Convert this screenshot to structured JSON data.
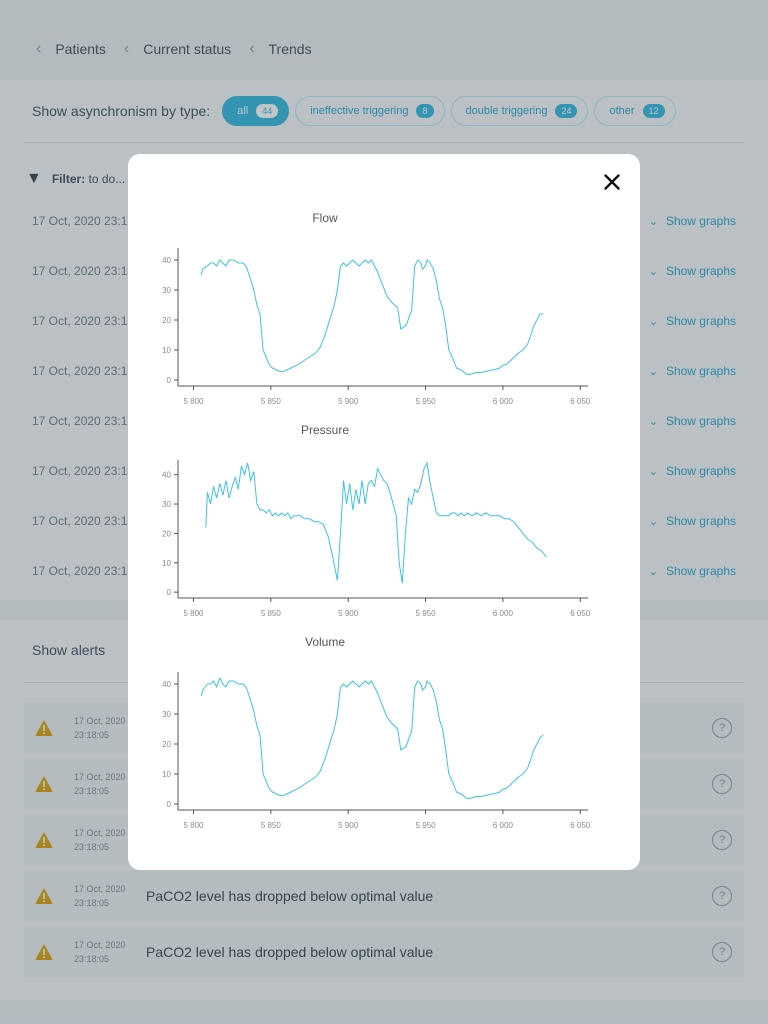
{
  "breadcrumb": [
    "Patients",
    "Current status",
    "Trends"
  ],
  "asynchronism": {
    "label": "Show asynchronism by type:",
    "chips": [
      {
        "label": "all",
        "count": "44",
        "active": true
      },
      {
        "label": "ineffective triggering",
        "count": "8"
      },
      {
        "label": "double triggering",
        "count": "24"
      },
      {
        "label": "other",
        "count": "12"
      }
    ]
  },
  "filter": {
    "label": "Filter:",
    "value": "to do..."
  },
  "asynchronism_rows": [
    {
      "date": "17 Oct, 2020 23:1",
      "action": "Show graphs"
    },
    {
      "date": "17 Oct, 2020 23:1",
      "action": "Show graphs"
    },
    {
      "date": "17 Oct, 2020 23:1",
      "action": "Show graphs"
    },
    {
      "date": "17 Oct, 2020 23:1",
      "action": "Show graphs"
    },
    {
      "date": "17 Oct, 2020 23:1",
      "action": "Show graphs"
    },
    {
      "date": "17 Oct, 2020 23:1",
      "action": "Show graphs"
    },
    {
      "date": "17 Oct, 2020 23:1",
      "action": "Show graphs"
    },
    {
      "date": "17 Oct, 2020 23:1",
      "action": "Show graphs"
    }
  ],
  "alerts": {
    "label": "Show alerts",
    "items": [
      {
        "date": "17 Oct, 2020",
        "time": "23:18:05",
        "text": ""
      },
      {
        "date": "17 Oct, 2020",
        "time": "23:18:05",
        "text": ""
      },
      {
        "date": "17 Oct, 2020",
        "time": "23:18:05",
        "text": ""
      },
      {
        "date": "17 Oct, 2020",
        "time": "23:18:05",
        "text": "PaCO2 level has dropped below optimal value"
      },
      {
        "date": "17 Oct, 2020",
        "time": "23:18:05",
        "text": "PaCO2 level has dropped below optimal value"
      }
    ]
  },
  "modal": {
    "close_icon": "close-icon"
  },
  "colors": {
    "accent": "#2bb6e0",
    "line": "#3cc3e4",
    "warning": "#d9a100"
  },
  "chart_data": [
    {
      "type": "line",
      "title": "Flow",
      "xlabel": "",
      "ylabel": "",
      "xlim": [
        5790,
        6055
      ],
      "ylim": [
        -2,
        44
      ],
      "xticks": [
        5800,
        5850,
        5900,
        5950,
        6000,
        6050
      ],
      "xtick_labels": [
        "5 800",
        "5 850",
        "5 900",
        "5 950",
        "6 000",
        "6 050"
      ],
      "yticks": [
        0,
        10,
        20,
        30,
        40
      ],
      "grid": false,
      "x": [
        5805,
        5806,
        5809,
        5811,
        5813,
        5815,
        5817,
        5819,
        5821,
        5823,
        5826,
        5829,
        5832,
        5834,
        5836,
        5839,
        5841,
        5843,
        5845,
        5849,
        5851,
        5853,
        5855,
        5857,
        5859,
        5863,
        5867,
        5870,
        5873,
        5876,
        5879,
        5882,
        5885,
        5888,
        5891,
        5893,
        5895,
        5897,
        5899,
        5901,
        5903,
        5905,
        5907,
        5909,
        5911,
        5913,
        5915,
        5917,
        5919,
        5922,
        5925,
        5928,
        5930,
        5932,
        5934,
        5937,
        5938,
        5940,
        5941,
        5943,
        5945,
        5947,
        5948,
        5950,
        5951,
        5953,
        5955,
        5957,
        5959,
        5961,
        5963,
        5965,
        5967,
        5970,
        5972,
        5974,
        5976,
        5978,
        5981,
        5983,
        5986,
        5988,
        5990,
        5992,
        5995,
        5998,
        6000,
        6002,
        6004,
        6006,
        6008,
        6010,
        6013,
        6016,
        6018,
        6020,
        6022,
        6024,
        6026
      ],
      "y": [
        35,
        37,
        38,
        39,
        39,
        38,
        40,
        39,
        38,
        40,
        40,
        39,
        39,
        38,
        35,
        30,
        25,
        22,
        10,
        5,
        4,
        3.5,
        3,
        2.7,
        3,
        4,
        5,
        6,
        7,
        8,
        9,
        11,
        15,
        20,
        25,
        30,
        38,
        39,
        38,
        39,
        40,
        39,
        38,
        39,
        40,
        39,
        40,
        38,
        36,
        32,
        28,
        26,
        25,
        24,
        17,
        18,
        19,
        22,
        23,
        38,
        40,
        39,
        37,
        38,
        40,
        39,
        37,
        33,
        27,
        24,
        18,
        10,
        8,
        4,
        3.5,
        3,
        2,
        1.8,
        2.2,
        2.5,
        2.6,
        2.7,
        3,
        3.2,
        3.5,
        4,
        5,
        5.2,
        6,
        7,
        8,
        9,
        10,
        12,
        15,
        18,
        20,
        22,
        22
      ]
    },
    {
      "type": "line",
      "title": "Pressure",
      "xlabel": "",
      "ylabel": "",
      "xlim": [
        5790,
        6055
      ],
      "ylim": [
        -2,
        45
      ],
      "xticks": [
        5800,
        5850,
        5900,
        5950,
        6000,
        6050
      ],
      "xtick_labels": [
        "5 800",
        "5 850",
        "5 900",
        "5 950",
        "6 000",
        "6 050"
      ],
      "yticks": [
        0,
        10,
        20,
        30,
        40
      ],
      "grid": false,
      "x": [
        5808,
        5809,
        5811,
        5813,
        5815,
        5817,
        5819,
        5821,
        5823,
        5825,
        5827,
        5829,
        5831,
        5833,
        5835,
        5837,
        5839,
        5841,
        5843,
        5845,
        5847,
        5849,
        5851,
        5853,
        5855,
        5857,
        5859,
        5861,
        5863,
        5865,
        5867,
        5869,
        5872,
        5875,
        5878,
        5881,
        5884,
        5887,
        5890,
        5893,
        5895,
        5897,
        5899,
        5901,
        5903,
        5905,
        5907,
        5909,
        5911,
        5913,
        5915,
        5917,
        5919,
        5921,
        5923,
        5925,
        5927,
        5929,
        5931,
        5933,
        5935,
        5937,
        5939,
        5941,
        5943,
        5945,
        5947,
        5949,
        5951,
        5953,
        5955,
        5957,
        5959,
        5961,
        5963,
        5965,
        5967,
        5969,
        5971,
        5973,
        5975,
        5977,
        5980,
        5983,
        5986,
        5989,
        5992,
        5995,
        5998,
        6001,
        6004,
        6007,
        6010,
        6013,
        6016,
        6019,
        6022,
        6025,
        6028
      ],
      "y": [
        22,
        34,
        30,
        36,
        32,
        37,
        33,
        38,
        32,
        36,
        39,
        35,
        43,
        40,
        44,
        38,
        41,
        30,
        28,
        28,
        27,
        28,
        26,
        27,
        26,
        27,
        26,
        27,
        25,
        26,
        26,
        26,
        25,
        25,
        24,
        24,
        23,
        19,
        12,
        4,
        20,
        38,
        30,
        37,
        28,
        35,
        30,
        38,
        30,
        37,
        38,
        36,
        42,
        40,
        38,
        37,
        34,
        30,
        26,
        10,
        3,
        20,
        32,
        30,
        35,
        34,
        37,
        42,
        44,
        37,
        32,
        27,
        26,
        26,
        26,
        26,
        27,
        27,
        26,
        27,
        26,
        27,
        26,
        27,
        26,
        27,
        26,
        26,
        26,
        25,
        25,
        24,
        22,
        20,
        18,
        17,
        15,
        14,
        12
      ]
    },
    {
      "type": "line",
      "title": "Volume",
      "xlabel": "",
      "ylabel": "",
      "xlim": [
        5790,
        6055
      ],
      "ylim": [
        -2,
        44
      ],
      "xticks": [
        5800,
        5850,
        5900,
        5950,
        6000,
        6050
      ],
      "xtick_labels": [
        "5 800",
        "5 850",
        "5 900",
        "5 950",
        "6 000",
        "6 050"
      ],
      "yticks": [
        0,
        10,
        20,
        30,
        40
      ],
      "grid": false,
      "x": [
        5805,
        5806,
        5809,
        5811,
        5813,
        5815,
        5817,
        5819,
        5821,
        5823,
        5826,
        5829,
        5832,
        5834,
        5836,
        5839,
        5841,
        5843,
        5845,
        5849,
        5851,
        5853,
        5855,
        5857,
        5859,
        5863,
        5867,
        5870,
        5873,
        5876,
        5879,
        5882,
        5885,
        5888,
        5891,
        5893,
        5895,
        5897,
        5899,
        5901,
        5903,
        5905,
        5907,
        5909,
        5911,
        5913,
        5915,
        5917,
        5919,
        5922,
        5925,
        5928,
        5930,
        5932,
        5934,
        5937,
        5938,
        5940,
        5941,
        5943,
        5945,
        5947,
        5948,
        5950,
        5951,
        5953,
        5955,
        5957,
        5959,
        5961,
        5963,
        5965,
        5967,
        5970,
        5972,
        5974,
        5976,
        5978,
        5981,
        5983,
        5986,
        5988,
        5990,
        5992,
        5995,
        5998,
        6000,
        6002,
        6004,
        6006,
        6008,
        6010,
        6013,
        6016,
        6018,
        6020,
        6022,
        6024,
        6026
      ],
      "y": [
        36,
        38,
        40,
        40,
        41,
        39,
        42,
        40,
        39,
        41,
        41,
        40,
        40,
        39,
        36,
        31,
        26,
        23,
        10,
        5,
        4,
        3.5,
        3,
        2.7,
        3,
        4,
        5,
        6,
        7,
        8,
        9,
        11,
        15,
        20,
        25,
        30,
        39,
        40,
        39,
        40,
        41,
        40,
        39,
        40,
        41,
        40,
        41,
        39,
        37,
        33,
        29,
        27,
        26,
        25,
        18,
        19,
        20,
        23,
        24,
        39,
        41,
        40,
        38,
        39,
        41,
        40,
        38,
        34,
        28,
        25,
        18,
        10,
        8,
        4,
        3.5,
        3,
        2,
        1.8,
        2.2,
        2.5,
        2.6,
        2.7,
        3,
        3.2,
        3.5,
        4,
        5,
        5.2,
        6,
        7,
        8,
        9,
        10,
        12,
        15,
        18,
        20,
        22,
        23
      ]
    }
  ]
}
